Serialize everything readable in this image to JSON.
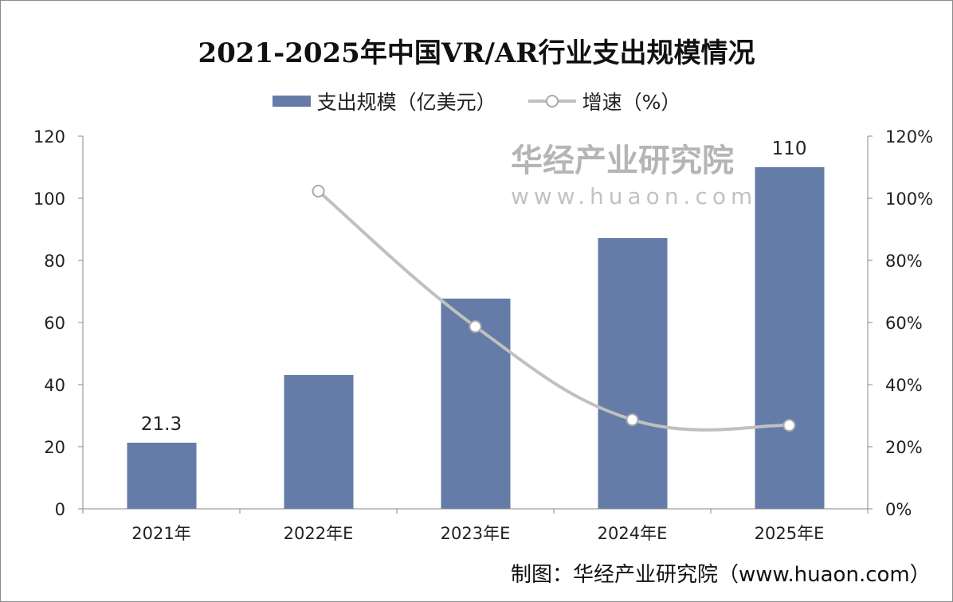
{
  "chart_data": {
    "type": "bar+line",
    "title": "2021-2025年中国VR/AR行业支出规模情况",
    "categories": [
      "2021年",
      "2022年E",
      "2023年E",
      "2024年E",
      "2025年E"
    ],
    "series": [
      {
        "name": "支出规模（亿美元）",
        "type": "bar",
        "axis": "left",
        "values": [
          21.3,
          43.1,
          67.7,
          87.2,
          110
        ],
        "data_labels": [
          "21.3",
          null,
          null,
          null,
          "110"
        ],
        "color": "#647ca7"
      },
      {
        "name": "增速（%）",
        "type": "line",
        "axis": "right",
        "values": [
          null,
          102.3,
          58.7,
          28.7,
          26.9
        ],
        "color": "#c0c0c0"
      }
    ],
    "y_left": {
      "range": [
        0,
        120
      ],
      "ticks": [
        "0",
        "20",
        "40",
        "60",
        "80",
        "100",
        "120"
      ]
    },
    "y_right": {
      "range": [
        0,
        120
      ],
      "ticks": [
        "0%",
        "20%",
        "40%",
        "60%",
        "80%",
        "100%",
        "120%"
      ]
    },
    "grid": false,
    "legend": "top"
  },
  "source": "制图：华经产业研究院（www.huaon.com）",
  "watermark": {
    "name": "华经产业研究院",
    "url": "www.huaon.com"
  }
}
